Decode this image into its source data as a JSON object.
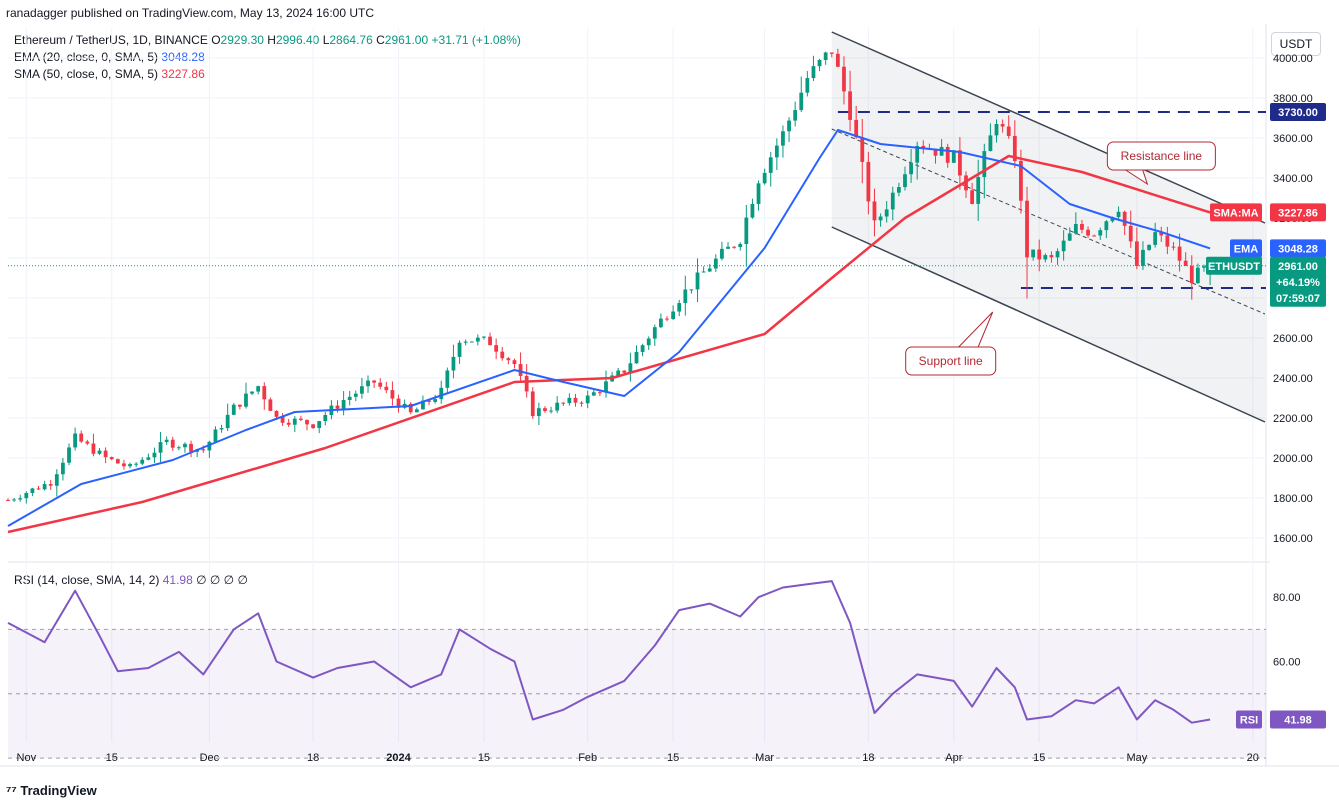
{
  "publisher": "ranadagger published on TradingView.com, May 13, 2024 16:00 UTC",
  "brand": "TradingView",
  "currency_button": "USDT",
  "legend": {
    "symbol": "Ethereum / TetherUS, 1D, BINANCE",
    "ohlc": {
      "o_label": "O",
      "o": "2929.30",
      "h_label": "H",
      "h": "2996.40",
      "l_label": "L",
      "l": "2864.76",
      "c_label": "C",
      "c": "2961.00",
      "change": "+31.71 (+1.08%)"
    },
    "ema_label": "EMA (20, close, 0, SMA, 5)",
    "ema_value": "3048.28",
    "sma_label": "SMA (50, close, 0, SMA, 5)",
    "sma_value": "3227.86"
  },
  "rsi_legend": {
    "label": "RSI (14, close, SMA, 14, 2)",
    "value": "41.98",
    "extras": "∅ ∅ ∅ ∅"
  },
  "colors": {
    "up": "#089981",
    "down": "#f23645",
    "ema": "#2962ff",
    "sma": "#f23645",
    "rsi": "#7e57c2",
    "channel": "#3d4451",
    "level": "#1e2b8a",
    "annotation": "#b22833"
  },
  "chart_data": [
    {
      "type": "candlestick",
      "title": "Ethereum / TetherUS, 1D, BINANCE",
      "price_axis": {
        "ylim": [
          1500,
          4150
        ],
        "ticks": [
          1600,
          1800,
          2000,
          2200,
          2400,
          2600,
          2800,
          3000,
          3200,
          3400,
          3600,
          3800,
          4000
        ],
        "tick_labels": [
          "1600.00",
          "1800.00",
          "2000.00",
          "2200.00",
          "2400.00",
          "2600.00",
          "2800.00",
          "3000.00",
          "3200.00",
          "3400.00",
          "3600.00",
          "3800.00",
          "4000.00"
        ]
      },
      "time_axis": {
        "start": "2023-10-29",
        "end": "2024-05-22",
        "ticks": [
          {
            "date": "2023-11-01",
            "label": "Nov"
          },
          {
            "date": "2023-11-15",
            "label": "15"
          },
          {
            "date": "2023-12-01",
            "label": "Dec"
          },
          {
            "date": "2023-12-18",
            "label": "18"
          },
          {
            "date": "2024-01-01",
            "label": "2024"
          },
          {
            "date": "2024-01-15",
            "label": "15"
          },
          {
            "date": "2024-02-01",
            "label": "Feb"
          },
          {
            "date": "2024-02-15",
            "label": "15"
          },
          {
            "date": "2024-03-01",
            "label": "Mar"
          },
          {
            "date": "2024-03-18",
            "label": "18"
          },
          {
            "date": "2024-04-01",
            "label": "Apr"
          },
          {
            "date": "2024-04-15",
            "label": "15"
          },
          {
            "date": "2024-05-01",
            "label": "May"
          },
          {
            "date": "2024-05-20",
            "label": "20"
          }
        ]
      },
      "close_anchors": [
        [
          "2023-10-29",
          1790
        ],
        [
          "2023-11-05",
          1880
        ],
        [
          "2023-11-09",
          2100
        ],
        [
          "2023-11-14",
          2000
        ],
        [
          "2023-11-18",
          1950
        ],
        [
          "2023-11-24",
          2080
        ],
        [
          "2023-11-30",
          2040
        ],
        [
          "2023-12-05",
          2250
        ],
        [
          "2023-12-09",
          2360
        ],
        [
          "2023-12-12",
          2200
        ],
        [
          "2023-12-18",
          2170
        ],
        [
          "2023-12-23",
          2290
        ],
        [
          "2023-12-28",
          2380
        ],
        [
          "2024-01-03",
          2220
        ],
        [
          "2024-01-08",
          2330
        ],
        [
          "2024-01-11",
          2600
        ],
        [
          "2024-01-16",
          2580
        ],
        [
          "2024-01-20",
          2470
        ],
        [
          "2024-01-23",
          2230
        ],
        [
          "2024-01-28",
          2270
        ],
        [
          "2024-02-01",
          2300
        ],
        [
          "2024-02-07",
          2440
        ],
        [
          "2024-02-12",
          2650
        ],
        [
          "2024-02-16",
          2800
        ],
        [
          "2024-02-21",
          2960
        ],
        [
          "2024-02-26",
          3100
        ],
        [
          "2024-02-29",
          3400
        ],
        [
          "2024-03-04",
          3620
        ],
        [
          "2024-03-08",
          3900
        ],
        [
          "2024-03-12",
          4040
        ],
        [
          "2024-03-15",
          3730
        ],
        [
          "2024-03-19",
          3160
        ],
        [
          "2024-03-22",
          3320
        ],
        [
          "2024-03-26",
          3580
        ],
        [
          "2024-04-01",
          3500
        ],
        [
          "2024-04-04",
          3300
        ],
        [
          "2024-04-08",
          3700
        ],
        [
          "2024-04-11",
          3510
        ],
        [
          "2024-04-13",
          3020
        ],
        [
          "2024-04-17",
          2990
        ],
        [
          "2024-04-21",
          3150
        ],
        [
          "2024-04-24",
          3130
        ],
        [
          "2024-04-28",
          3260
        ],
        [
          "2024-05-01",
          2960
        ],
        [
          "2024-05-04",
          3120
        ],
        [
          "2024-05-07",
          3040
        ],
        [
          "2024-05-10",
          2900
        ],
        [
          "2024-05-13",
          2961
        ]
      ],
      "last_candle": {
        "open": 2929.3,
        "high": 2996.4,
        "low": 2864.76,
        "close": 2961.0
      },
      "ema20": [
        [
          "2023-10-29",
          1660
        ],
        [
          "2023-11-10",
          1870
        ],
        [
          "2023-11-25",
          1990
        ],
        [
          "2023-12-07",
          2140
        ],
        [
          "2023-12-15",
          2230
        ],
        [
          "2024-01-03",
          2260
        ],
        [
          "2024-01-20",
          2440
        ],
        [
          "2024-01-28",
          2380
        ],
        [
          "2024-02-07",
          2310
        ],
        [
          "2024-02-16",
          2530
        ],
        [
          "2024-03-01",
          3050
        ],
        [
          "2024-03-10",
          3500
        ],
        [
          "2024-03-13",
          3640
        ],
        [
          "2024-03-20",
          3570
        ],
        [
          "2024-04-02",
          3530
        ],
        [
          "2024-04-12",
          3460
        ],
        [
          "2024-04-20",
          3270
        ],
        [
          "2024-04-27",
          3200
        ],
        [
          "2024-05-05",
          3130
        ],
        [
          "2024-05-13",
          3048
        ]
      ],
      "sma50": [
        [
          "2023-10-29",
          1630
        ],
        [
          "2023-11-20",
          1780
        ],
        [
          "2023-12-20",
          2050
        ],
        [
          "2024-01-20",
          2380
        ],
        [
          "2024-02-05",
          2400
        ],
        [
          "2024-03-01",
          2620
        ],
        [
          "2024-03-12",
          2900
        ],
        [
          "2024-03-24",
          3200
        ],
        [
          "2024-04-10",
          3510
        ],
        [
          "2024-04-22",
          3430
        ],
        [
          "2024-05-13",
          3228
        ]
      ],
      "price_labels": [
        {
          "text": "3730.00",
          "kind": "level"
        },
        {
          "text": "2850.00",
          "kind": "level"
        },
        {
          "label": "SMA:MA",
          "value": "3227.86"
        },
        {
          "label": "EMA",
          "value": "3048.28"
        },
        {
          "label": "ETHUSDT",
          "value": "2961.00",
          "change": "+64.19%",
          "countdown": "07:59:07"
        }
      ],
      "levels": [
        3730,
        2850
      ],
      "channel": {
        "upper": [
          [
            "2024-03-12",
            4130
          ],
          [
            "2024-05-22",
            3175
          ]
        ],
        "lower": [
          [
            "2024-03-12",
            3155
          ],
          [
            "2024-05-22",
            2180
          ]
        ],
        "median": [
          [
            "2024-03-12",
            3645
          ],
          [
            "2024-05-22",
            2720
          ]
        ]
      },
      "annotations": [
        {
          "text": "Resistance line"
        },
        {
          "text": "Support line"
        }
      ]
    },
    {
      "type": "line",
      "title": "RSI (14, close, SMA, 14, 2)",
      "ylim": [
        35,
        90
      ],
      "ticks": [
        40,
        60,
        80
      ],
      "tick_labels": [
        "",
        "60.00",
        "80.00"
      ],
      "band": [
        30,
        70
      ],
      "midline": 50,
      "last_value_label": {
        "label": "RSI",
        "value": "41.98"
      },
      "series": [
        [
          "2023-10-29",
          72
        ],
        [
          "2023-11-04",
          66
        ],
        [
          "2023-11-09",
          82
        ],
        [
          "2023-11-13",
          68
        ],
        [
          "2023-11-16",
          57
        ],
        [
          "2023-11-21",
          58
        ],
        [
          "2023-11-26",
          63
        ],
        [
          "2023-11-30",
          56
        ],
        [
          "2023-12-05",
          70
        ],
        [
          "2023-12-09",
          75
        ],
        [
          "2023-12-12",
          60
        ],
        [
          "2023-12-18",
          55
        ],
        [
          "2023-12-22",
          58
        ],
        [
          "2023-12-28",
          60
        ],
        [
          "2024-01-03",
          52
        ],
        [
          "2024-01-08",
          56
        ],
        [
          "2024-01-11",
          70
        ],
        [
          "2024-01-16",
          64
        ],
        [
          "2024-01-20",
          60
        ],
        [
          "2024-01-23",
          42
        ],
        [
          "2024-01-28",
          45
        ],
        [
          "2024-02-01",
          49
        ],
        [
          "2024-02-07",
          54
        ],
        [
          "2024-02-12",
          65
        ],
        [
          "2024-02-16",
          76
        ],
        [
          "2024-02-21",
          78
        ],
        [
          "2024-02-26",
          74
        ],
        [
          "2024-02-29",
          80
        ],
        [
          "2024-03-04",
          83
        ],
        [
          "2024-03-08",
          84
        ],
        [
          "2024-03-12",
          85
        ],
        [
          "2024-03-15",
          72
        ],
        [
          "2024-03-19",
          44
        ],
        [
          "2024-03-22",
          50
        ],
        [
          "2024-03-26",
          56
        ],
        [
          "2024-04-01",
          54
        ],
        [
          "2024-04-04",
          46
        ],
        [
          "2024-04-08",
          58
        ],
        [
          "2024-04-11",
          52
        ],
        [
          "2024-04-13",
          42
        ],
        [
          "2024-04-17",
          43
        ],
        [
          "2024-04-21",
          48
        ],
        [
          "2024-04-24",
          47
        ],
        [
          "2024-04-28",
          52
        ],
        [
          "2024-05-01",
          42
        ],
        [
          "2024-05-04",
          48
        ],
        [
          "2024-05-07",
          45
        ],
        [
          "2024-05-10",
          41
        ],
        [
          "2024-05-13",
          41.98
        ]
      ]
    }
  ]
}
